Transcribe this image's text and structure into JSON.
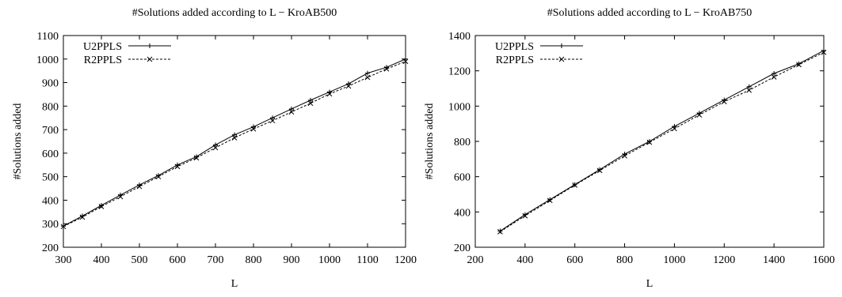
{
  "chart_data": [
    {
      "type": "line",
      "title": "#Solutions added according to L − KroAB500",
      "xlabel": "L",
      "ylabel": "#Solutions added",
      "xlim": [
        300,
        1200
      ],
      "ylim": [
        200,
        1100
      ],
      "xticks": [
        300,
        400,
        500,
        600,
        700,
        800,
        900,
        1000,
        1100,
        1200
      ],
      "yticks": [
        200,
        300,
        400,
        500,
        600,
        700,
        800,
        900,
        1000,
        1100
      ],
      "grid": false,
      "legend": "top-left",
      "x": [
        300,
        350,
        400,
        450,
        500,
        550,
        600,
        650,
        700,
        750,
        800,
        850,
        900,
        950,
        1000,
        1050,
        1100,
        1150,
        1200
      ],
      "series": [
        {
          "name": "U2PPLS",
          "style": "solid",
          "marker": "plus",
          "values": [
            290,
            333,
            378,
            422,
            465,
            505,
            550,
            585,
            635,
            678,
            712,
            750,
            788,
            825,
            860,
            895,
            940,
            965,
            1000
          ]
        },
        {
          "name": "R2PPLS",
          "style": "dashed",
          "marker": "x",
          "values": [
            288,
            328,
            373,
            415,
            458,
            500,
            543,
            580,
            623,
            665,
            703,
            738,
            775,
            812,
            852,
            885,
            922,
            958,
            990
          ]
        }
      ]
    },
    {
      "type": "line",
      "title": "#Solutions added according to L − KroAB750",
      "xlabel": "L",
      "ylabel": "#Solutions added",
      "xlim": [
        200,
        1600
      ],
      "ylim": [
        200,
        1400
      ],
      "xticks": [
        200,
        400,
        600,
        800,
        1000,
        1200,
        1400,
        1600
      ],
      "yticks": [
        200,
        400,
        600,
        800,
        1000,
        1200,
        1400
      ],
      "grid": false,
      "legend": "top-left",
      "x": [
        300,
        400,
        500,
        600,
        700,
        800,
        900,
        1000,
        1100,
        1200,
        1300,
        1400,
        1500,
        1600
      ],
      "series": [
        {
          "name": "U2PPLS",
          "style": "solid",
          "marker": "plus",
          "values": [
            292,
            385,
            470,
            555,
            640,
            728,
            800,
            885,
            960,
            1035,
            1110,
            1185,
            1240,
            1315
          ]
        },
        {
          "name": "R2PPLS",
          "style": "dashed",
          "marker": "x",
          "values": [
            288,
            378,
            465,
            552,
            635,
            718,
            795,
            872,
            950,
            1025,
            1090,
            1165,
            1235,
            1305
          ]
        }
      ]
    }
  ]
}
